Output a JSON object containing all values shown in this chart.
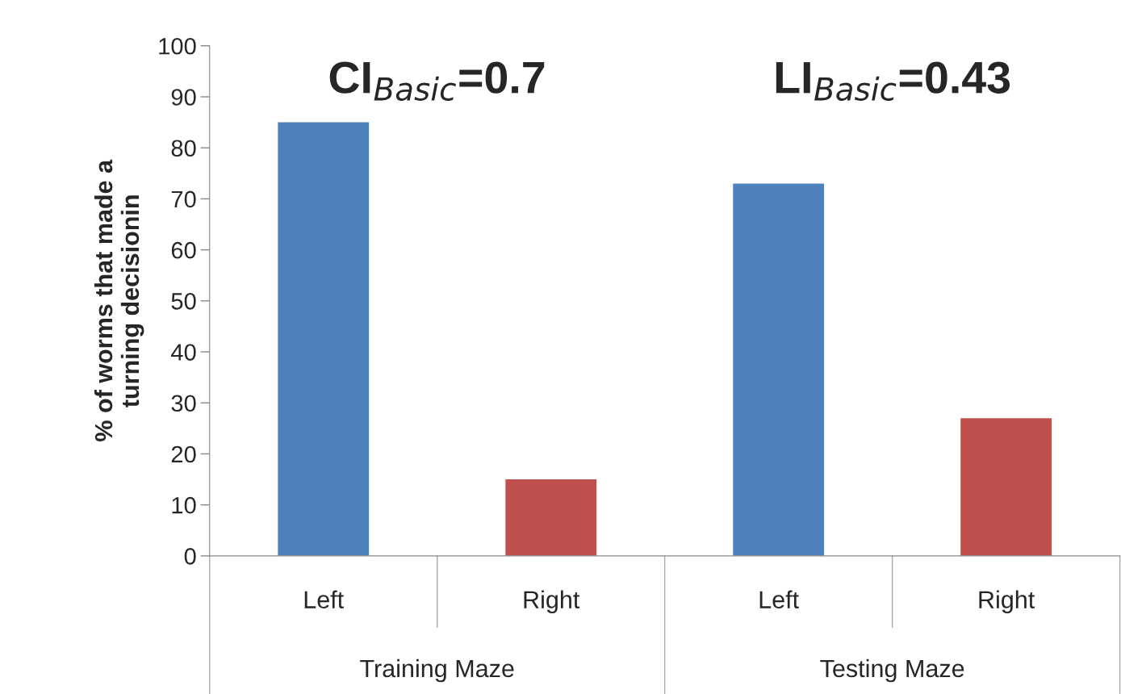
{
  "chart_data": {
    "type": "bar",
    "ylabel": "% of worms that made a\nturning decisionin",
    "categories": [
      "Left",
      "Right",
      "Left",
      "Right"
    ],
    "values": [
      85,
      15,
      73,
      27
    ],
    "colors": [
      "#4f81bd",
      "#c0504d",
      "#4f81bd",
      "#c0504d"
    ],
    "ylim": [
      0,
      100
    ],
    "yticks": [
      0,
      10,
      20,
      30,
      40,
      50,
      60,
      70,
      80,
      90,
      100
    ],
    "annotations": [
      "CI$_{Basic}$=0.7",
      "LI$_{Basic}$=0.43",
      "Training Maze",
      "Testing Maze"
    ],
    "grid": false,
    "legend": false
  }
}
